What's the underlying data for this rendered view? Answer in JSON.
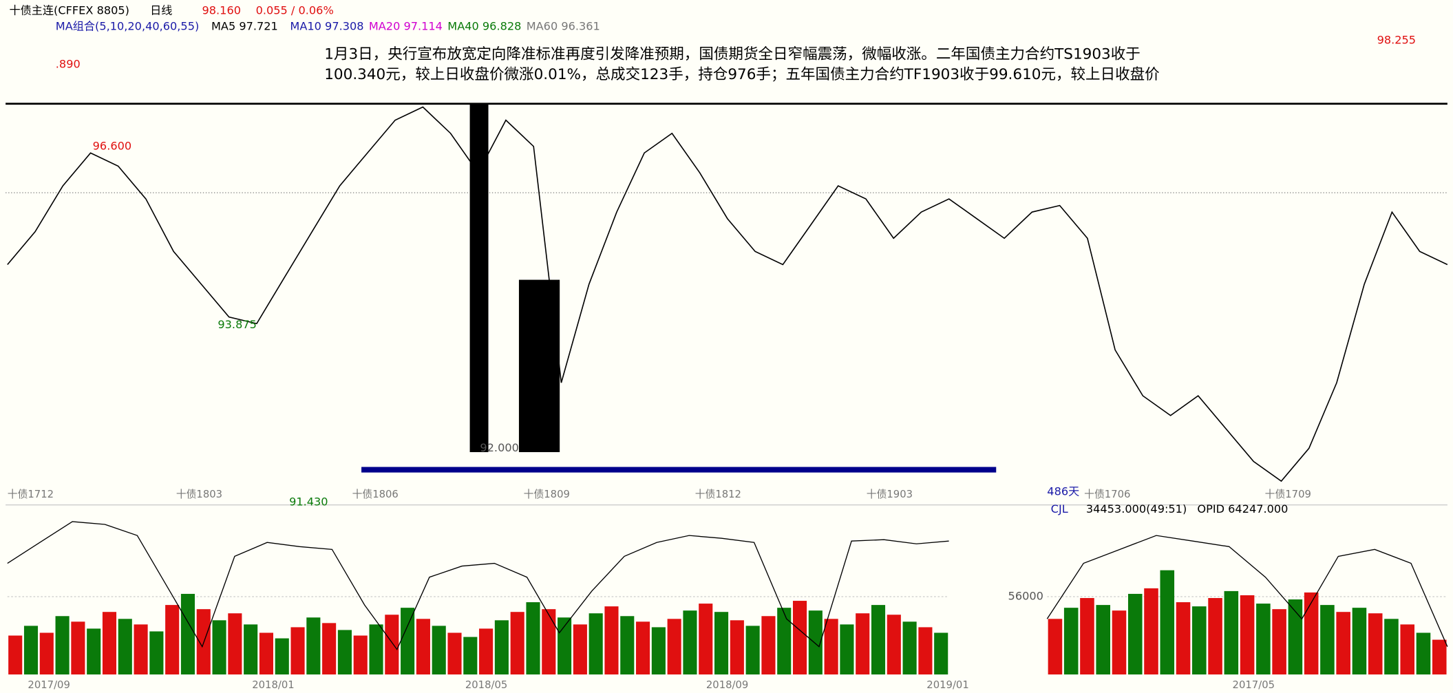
{
  "header": {
    "symbol": "十债主连(CFFEX 8805)",
    "period": "日线",
    "price": "98.160",
    "change": "0.055 / 0.06%"
  },
  "ma_legend": {
    "group": "MA组合(5,10,20,40,60,55)",
    "items": [
      {
        "label": "MA5 97.721",
        "color": "#000000"
      },
      {
        "label": "MA10 97.308",
        "color": "#1a1aa8"
      },
      {
        "label": "MA20 97.114",
        "color": "#d000d0"
      },
      {
        "label": "MA40 96.828",
        "color": "#0a7a0a"
      },
      {
        "label": "MA60 96.361",
        "color": "#777777"
      }
    ]
  },
  "news": [
    "1月3日，央行宣布放宽定向降准标准再度引发降准预期，国债期货全日窄幅震荡，微幅收涨。二年国债主力合约TS1903收于",
    "100.340元，较上日收盘价微涨0.01%，总成交123手，持仓976手；五年国债主力合约TF1903收于99.610元，较上日收盘价"
  ],
  "chart_data": [
    {
      "type": "line",
      "color": "#000000",
      "ylim": [
        91.42,
        97.25
      ],
      "values": [
        94.8,
        95.3,
        96.0,
        96.5,
        96.3,
        95.8,
        95.0,
        94.5,
        94.0,
        93.9,
        94.6,
        95.3,
        96.0,
        96.5,
        97.0,
        97.2,
        96.8,
        96.2,
        97.0,
        96.6,
        93.0,
        94.5,
        95.6,
        96.5,
        96.8,
        96.2,
        95.5,
        95.0,
        94.8,
        95.4,
        96.0,
        95.8,
        95.2,
        95.6,
        95.8,
        95.5,
        95.2,
        95.6,
        95.7,
        95.2,
        93.5,
        92.8,
        92.5,
        92.8,
        92.3,
        91.8,
        91.5,
        92.0,
        93.0,
        94.5,
        95.6,
        95.0,
        94.8
      ],
      "price_labels": [
        {
          "value": 96.6,
          "label": "96.600"
        },
        {
          "value": 93.875,
          "label": "93.875"
        },
        {
          "value": 92.0,
          "label": "92.000"
        },
        {
          "value": 91.43,
          "label": "91.430"
        }
      ],
      "top_labels": [
        ".890",
        "98.255"
      ],
      "contracts": [
        "十债1712",
        "十债1803",
        "十债1806",
        "十债1809",
        "十债1812",
        "十债1903",
        "十债1706",
        "十债1709"
      ],
      "days": "486天"
    },
    {
      "type": "bar",
      "ylim": [
        0,
        112000
      ],
      "yticks": [
        56000
      ],
      "colors": [
        "#e01010",
        "#0a7a0a"
      ],
      "indicator": "CJL",
      "reading": "34453.000(49:51)",
      "opid": "OPID 64247.000",
      "series": [
        {
          "values": [
            28000,
            35000,
            30000,
            42000,
            38000,
            33000,
            45000,
            40000,
            36000,
            31000,
            50000,
            58000,
            47000,
            39000,
            44000,
            36000,
            30000,
            26000,
            34000,
            41000,
            37000,
            32000,
            28000,
            36000,
            43000,
            48000,
            40000,
            35000,
            30000,
            27000,
            33000,
            39000,
            45000,
            52000,
            47000,
            41000,
            36000,
            44000,
            49000,
            42000,
            38000,
            34000,
            40000,
            46000,
            51000,
            45000,
            39000,
            35000,
            42000,
            48000,
            53000,
            46000,
            40000,
            36000,
            44000,
            50000,
            43000,
            38000,
            34000,
            30000
          ],
          "line": [
            80000,
            95000,
            110000,
            108000,
            100000,
            60000,
            20000,
            85000,
            95000,
            92000,
            90000,
            50000,
            18000,
            70000,
            78000,
            80000,
            70000,
            30000,
            60000,
            85000,
            95000,
            100000,
            98000,
            95000,
            40000,
            20000,
            96000,
            97000,
            94000,
            96000
          ],
          "dates": [
            "2017/09",
            "2018/01",
            "2018/05",
            "2018/09",
            "2019/01"
          ]
        },
        {
          "values": [
            40000,
            48000,
            55000,
            50000,
            46000,
            58000,
            62000,
            75000,
            52000,
            49000,
            55000,
            60000,
            57000,
            51000,
            47000,
            54000,
            59000,
            50000,
            45000,
            48000,
            44000,
            40000,
            36000,
            30000,
            25000
          ],
          "line": [
            40000,
            80000,
            90000,
            100000,
            96000,
            92000,
            70000,
            40000,
            85000,
            90000,
            80000,
            20000
          ],
          "dates": [
            "2017/05"
          ]
        }
      ]
    }
  ]
}
